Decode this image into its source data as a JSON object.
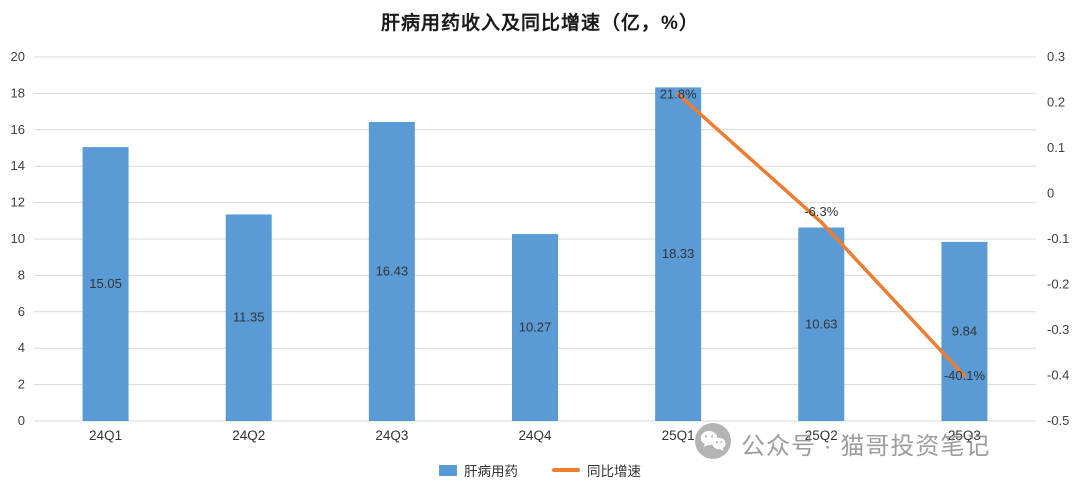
{
  "title": "肝病用药收入及同比增速（亿，%）",
  "chart_data": {
    "type": "bar",
    "title": "肝病用药收入及同比增速（亿，%）",
    "categories": [
      "24Q1",
      "24Q2",
      "24Q3",
      "24Q4",
      "25Q1",
      "25Q2",
      "25Q3"
    ],
    "series": [
      {
        "name": "肝病用药",
        "type": "bar",
        "axis": "left",
        "color": "#5B9BD5",
        "values": [
          15.05,
          11.35,
          16.43,
          10.27,
          18.33,
          10.63,
          9.84
        ],
        "value_labels": [
          "15.05",
          "11.35",
          "16.43",
          "10.27",
          "18.33",
          "10.63",
          "9.84"
        ]
      },
      {
        "name": "同比增速",
        "type": "line",
        "axis": "right",
        "color": "#ED7D31",
        "values": [
          null,
          null,
          null,
          null,
          0.218,
          -0.063,
          -0.401
        ],
        "value_labels": [
          null,
          null,
          null,
          null,
          "21.8%",
          "-6.3%",
          "-40.1%"
        ]
      }
    ],
    "left_axis": {
      "min": 0,
      "max": 20,
      "step": 2,
      "ticks": [
        "0",
        "2",
        "4",
        "6",
        "8",
        "10",
        "12",
        "14",
        "16",
        "18",
        "20"
      ]
    },
    "right_axis": {
      "min": -0.5,
      "max": 0.3,
      "step": 0.1,
      "ticks": [
        "-0.5",
        "-0.4",
        "-0.3",
        "-0.2",
        "-0.1",
        "0",
        "0.1",
        "0.2",
        "0.3"
      ]
    },
    "grid": true,
    "grid_color": "#D9D9D9",
    "legend_position": "bottom"
  },
  "legend": [
    {
      "label": "肝病用药",
      "marker": "bar",
      "color": "#5B9BD5"
    },
    {
      "label": "同比增速",
      "marker": "line",
      "color": "#ED7D31"
    }
  ],
  "watermark": {
    "text": "公众号 · 猫哥投资笔记"
  },
  "colors": {
    "bar": "#5B9BD5",
    "line": "#ED7D31",
    "grid": "#D9D9D9",
    "watermark_text": "#8c8c8c"
  }
}
